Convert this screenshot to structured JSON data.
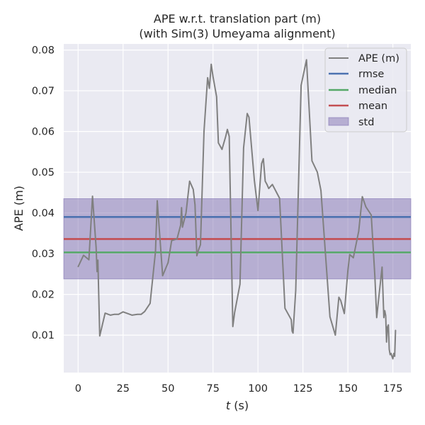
{
  "chart_data": {
    "type": "line",
    "title_line1": "APE w.r.t. translation part (m)",
    "title_line2": "(with Sim(3) Umeyama alignment)",
    "xlabel_italic": "t",
    "xlabel_rest": " (s)",
    "ylabel": "APE (m)",
    "xlim": [
      -8,
      185
    ],
    "ylim": [
      0.0008,
      0.0815
    ],
    "xticks": [
      0,
      25,
      50,
      75,
      100,
      125,
      150,
      175
    ],
    "xtick_labels": [
      "0",
      "25",
      "50",
      "75",
      "100",
      "125",
      "150",
      "175"
    ],
    "yticks": [
      0.01,
      0.02,
      0.03,
      0.04,
      0.05,
      0.06,
      0.07,
      0.08
    ],
    "ytick_labels": [
      "0.01",
      "0.02",
      "0.03",
      "0.04",
      "0.05",
      "0.06",
      "0.07",
      "0.08"
    ],
    "grid": true,
    "legend_position": "top-right",
    "colors": {
      "background": "#eaeaf2",
      "grid": "#ffffff",
      "ape": "#808080",
      "rmse": "#4c72b0",
      "median": "#55a868",
      "mean": "#c44e52",
      "std": "#8172b2"
    },
    "stats": {
      "rmse": 0.039,
      "median": 0.0303,
      "mean": 0.0336,
      "std_low": 0.0238,
      "std_high": 0.0435
    },
    "legend": {
      "ape": "APE (m)",
      "rmse": "rmse",
      "median": "median",
      "mean": "mean",
      "std": "std"
    },
    "series": [
      {
        "name": "APE (m)",
        "x": [
          0,
          3,
          6,
          8,
          10,
          10.5,
          11,
          12,
          15,
          18,
          20,
          22.5,
          25,
          30,
          33,
          35,
          37,
          40,
          43,
          44,
          47,
          50,
          52,
          55,
          57,
          57.5,
          58,
          60,
          61,
          62,
          64,
          65,
          66,
          67,
          68,
          70,
          72,
          73,
          74,
          75,
          77,
          78,
          80,
          82,
          83,
          84,
          86,
          87,
          90,
          92,
          94,
          95,
          98,
          100,
          102,
          103,
          104,
          105,
          106,
          108,
          112,
          115,
          118.5,
          119,
          119.5,
          121,
          124,
          127,
          130,
          133,
          135,
          140,
          143,
          145,
          146,
          148,
          150,
          151,
          153,
          156,
          158,
          160,
          163,
          165,
          166,
          167,
          168,
          169,
          170,
          170.5,
          171,
          171.5,
          172,
          172.5,
          173,
          173.5,
          174,
          174.5,
          175,
          175.5,
          176,
          176.5
        ],
        "y": [
          0.0268,
          0.0296,
          0.0285,
          0.0441,
          0.0315,
          0.0256,
          0.0284,
          0.0098,
          0.0154,
          0.0149,
          0.0151,
          0.0151,
          0.0157,
          0.0149,
          0.0151,
          0.0151,
          0.0158,
          0.0178,
          0.0305,
          0.043,
          0.0246,
          0.0278,
          0.0332,
          0.0336,
          0.037,
          0.0413,
          0.0365,
          0.04,
          0.044,
          0.0478,
          0.0458,
          0.042,
          0.0295,
          0.031,
          0.0322,
          0.06,
          0.0732,
          0.0706,
          0.0765,
          0.0735,
          0.0685,
          0.0572,
          0.0556,
          0.0587,
          0.0605,
          0.0588,
          0.0121,
          0.0155,
          0.0225,
          0.056,
          0.0644,
          0.0635,
          0.048,
          0.0406,
          0.0521,
          0.0533,
          0.0478,
          0.047,
          0.046,
          0.047,
          0.0436,
          0.0166,
          0.0138,
          0.011,
          0.0105,
          0.021,
          0.0713,
          0.0776,
          0.0528,
          0.05,
          0.0455,
          0.0145,
          0.01,
          0.0193,
          0.0185,
          0.0153,
          0.0258,
          0.0298,
          0.029,
          0.0355,
          0.044,
          0.0415,
          0.0395,
          0.0245,
          0.0143,
          0.0185,
          0.0225,
          0.0267,
          0.0143,
          0.016,
          0.0148,
          0.0083,
          0.012,
          0.0125,
          0.0065,
          0.0052,
          0.0055,
          0.0048,
          0.0042,
          0.0055,
          0.0048,
          0.0112
        ]
      }
    ]
  }
}
